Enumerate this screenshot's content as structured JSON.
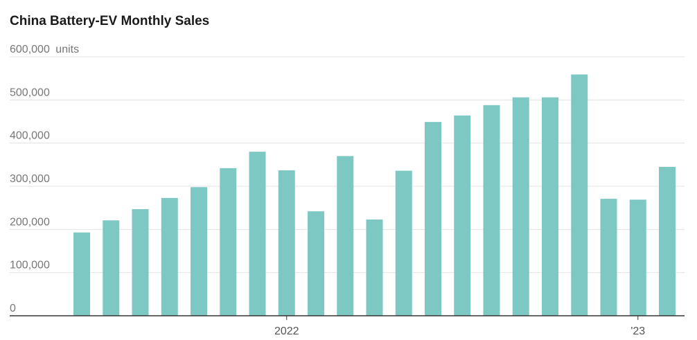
{
  "chart_data": {
    "type": "bar",
    "title": "China Battery-EV Monthly Sales",
    "y_unit": "units",
    "ylim": [
      0,
      600000
    ],
    "y_ticks": [
      0,
      100000,
      200000,
      300000,
      400000,
      500000,
      600000
    ],
    "y_tick_labels": [
      "0",
      "100,000",
      "200,000",
      "300,000",
      "400,000",
      "500,000",
      "600,000"
    ],
    "x_tick_labels": [
      {
        "label": "2022",
        "index": 7
      },
      {
        "label": "'23",
        "index": 19
      }
    ],
    "values": [
      193000,
      221000,
      247000,
      273000,
      298000,
      342000,
      380000,
      337000,
      242000,
      370000,
      223000,
      336000,
      449000,
      464000,
      488000,
      506000,
      506000,
      559000,
      271000,
      269000,
      345000
    ],
    "bar_color": "#7dc8c3",
    "grid": true,
    "legend": "none"
  }
}
